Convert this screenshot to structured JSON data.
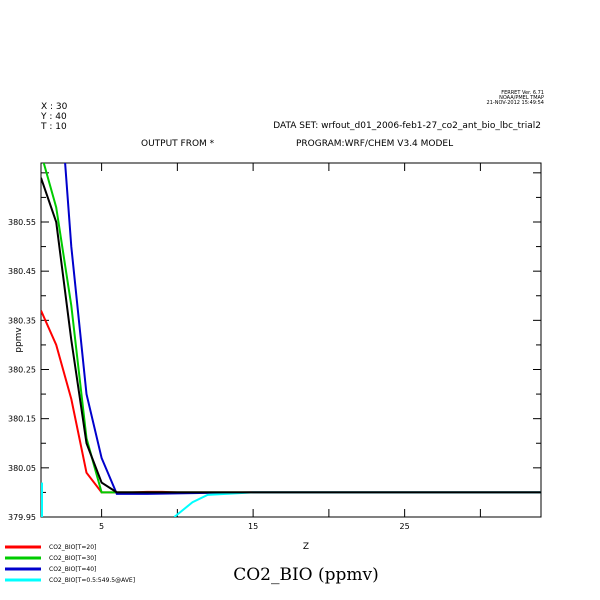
{
  "header": {
    "ferret_version": "FERRET Ver. 6.71",
    "ferret_org": "NOAA/PMEL TMAP",
    "ferret_date": "21-NOV-2012 15:49:54",
    "x_line": "X : 30",
    "y_line": "Y : 40",
    "t_line": "T : 10",
    "dataset": "DATA SET: wrfout_d01_2006-feb1-27_co2_ant_bio_lbc_trial2",
    "output_from": "OUTPUT FROM *",
    "program": "PROGRAM:WRF/CHEM V3.4 MODEL"
  },
  "chart_data": {
    "type": "line",
    "title": "CO2_BIO (ppmv)",
    "xlabel": "Z",
    "ylabel": "ppmv",
    "xlim": [
      1,
      34
    ],
    "ylim": [
      379.95,
      380.67
    ],
    "x_ticks": [
      5,
      15,
      25
    ],
    "y_ticks": [
      379.95,
      380.05,
      380.15,
      380.25,
      380.35,
      380.45,
      380.55
    ],
    "y_tick_labels": [
      "379.95",
      "380.05",
      "380.15",
      "380.25",
      "380.35",
      "380.45",
      "380.55"
    ],
    "grid": false,
    "legend_position": "bottom-left",
    "series": [
      {
        "name": "CO2_BIO[T=20]",
        "color": "#ff0000",
        "points": [
          [
            1,
            380.37
          ],
          [
            2,
            380.3
          ],
          [
            3,
            380.19
          ],
          [
            4,
            380.04
          ],
          [
            5,
            380.0
          ],
          [
            6,
            380.0
          ],
          [
            7,
            380.0
          ],
          [
            8,
            380.001
          ],
          [
            9,
            380.001
          ],
          [
            10,
            380.0
          ],
          [
            12,
            380.0
          ],
          [
            15,
            380.0
          ],
          [
            20,
            380.0
          ],
          [
            25,
            380.0
          ],
          [
            30,
            380.0
          ],
          [
            34,
            380.0
          ]
        ]
      },
      {
        "name": "CO2_BIO[T=30]",
        "color": "#00cc00",
        "points": [
          [
            1,
            380.69
          ],
          [
            2,
            380.58
          ],
          [
            3,
            380.38
          ],
          [
            4,
            380.11
          ],
          [
            5,
            380.0
          ],
          [
            6,
            380.0
          ],
          [
            7,
            380.0
          ],
          [
            8,
            380.0
          ],
          [
            10,
            380.0
          ],
          [
            15,
            380.0
          ],
          [
            20,
            380.0
          ],
          [
            25,
            380.0
          ],
          [
            30,
            380.0
          ],
          [
            34,
            380.0
          ]
        ]
      },
      {
        "name": "CO2_BIO[T=40]",
        "color": "#0000cc",
        "points": [
          [
            2.4,
            380.75
          ],
          [
            3,
            380.5
          ],
          [
            4,
            380.2
          ],
          [
            5,
            380.07
          ],
          [
            6,
            379.997
          ],
          [
            7,
            379.997
          ],
          [
            8,
            379.997
          ],
          [
            10,
            379.998
          ],
          [
            12,
            379.999
          ],
          [
            15,
            380.0
          ],
          [
            20,
            380.0
          ],
          [
            25,
            380.0
          ],
          [
            30,
            380.0
          ],
          [
            34,
            380.0
          ]
        ]
      },
      {
        "name": "CO2_BIO[T=0.5:549.5@AVE]",
        "color": "#00ffff",
        "points": [
          [
            9.8,
            379.95
          ],
          [
            11,
            379.98
          ],
          [
            12,
            379.995
          ],
          [
            15,
            380.0
          ],
          [
            20,
            380.0
          ],
          [
            25,
            380.0
          ],
          [
            30,
            380.0
          ],
          [
            34,
            380.0
          ]
        ]
      },
      {
        "name": "",
        "color": "#000000",
        "points": [
          [
            1,
            380.64
          ],
          [
            2,
            380.55
          ],
          [
            3,
            380.31
          ],
          [
            4,
            380.1
          ],
          [
            5,
            380.02
          ],
          [
            6,
            380.0
          ],
          [
            7,
            380.0
          ],
          [
            10,
            380.0
          ],
          [
            15,
            380.0
          ],
          [
            20,
            380.0
          ],
          [
            25,
            380.0
          ],
          [
            30,
            380.0
          ],
          [
            34,
            380.0
          ]
        ]
      }
    ]
  }
}
